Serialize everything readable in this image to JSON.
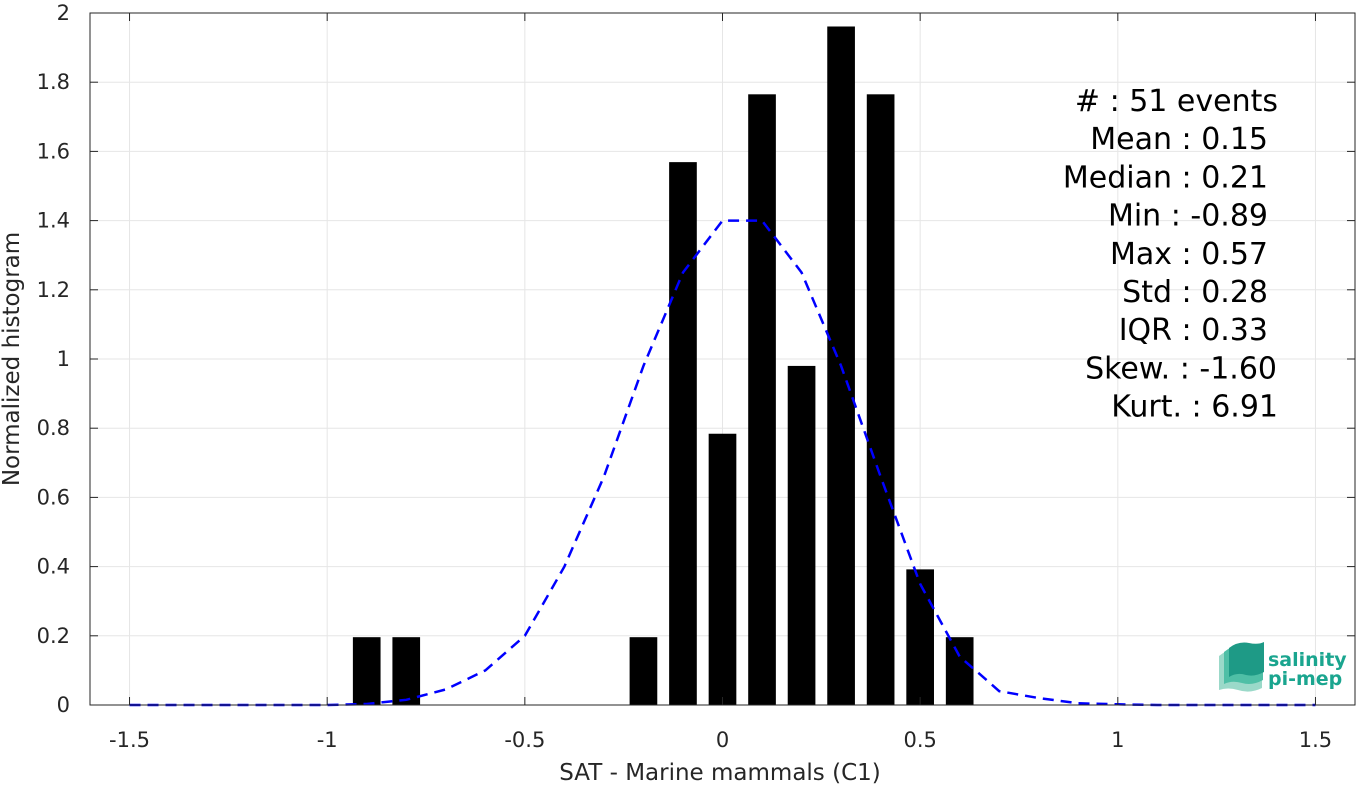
{
  "chart_data": {
    "type": "bar",
    "xlabel": "SAT - Marine mammals (C1)",
    "ylabel": "Normalized histogram",
    "xlim": [
      -1.6,
      1.6
    ],
    "ylim": [
      0,
      2
    ],
    "grid": true,
    "x_ticks": [
      -1.5,
      -1,
      -0.5,
      0,
      0.5,
      1,
      1.5
    ],
    "x_tick_labels": [
      "-1.5",
      "-1",
      "-0.5",
      "0",
      "0.5",
      "1",
      "1.5"
    ],
    "y_ticks": [
      0,
      0.2,
      0.4,
      0.6,
      0.8,
      1,
      1.2,
      1.4,
      1.6,
      1.8,
      2
    ],
    "y_tick_labels": [
      "0",
      "0.2",
      "0.4",
      "0.6",
      "0.8",
      "1",
      "1.2",
      "1.4",
      "1.6",
      "1.8",
      "2"
    ],
    "bar_width": 0.07,
    "bar_color": "#000000",
    "bars": [
      {
        "x": -0.9,
        "value": 0.196
      },
      {
        "x": -0.8,
        "value": 0.196
      },
      {
        "x": -0.2,
        "value": 0.196
      },
      {
        "x": -0.1,
        "value": 1.569
      },
      {
        "x": 0.0,
        "value": 0.784
      },
      {
        "x": 0.1,
        "value": 1.765
      },
      {
        "x": 0.2,
        "value": 0.98
      },
      {
        "x": 0.3,
        "value": 1.961
      },
      {
        "x": 0.4,
        "value": 1.765
      },
      {
        "x": 0.5,
        "value": 0.392
      },
      {
        "x": 0.6,
        "value": 0.196
      }
    ],
    "fit_curve": {
      "style": "dashed",
      "color": "#0000ff",
      "x": [
        -1.5,
        -1.4,
        -1.3,
        -1.2,
        -1.1,
        -1.0,
        -0.9,
        -0.8,
        -0.7,
        -0.6,
        -0.5,
        -0.4,
        -0.3,
        -0.2,
        -0.1,
        0.0,
        0.1,
        0.2,
        0.3,
        0.4,
        0.5,
        0.6,
        0.7,
        0.8,
        0.9,
        1.0,
        1.1,
        1.2,
        1.3,
        1.4,
        1.5
      ],
      "y": [
        0.0,
        0.0,
        0.0,
        0.0,
        0.0,
        0.0,
        0.003,
        0.015,
        0.045,
        0.1,
        0.2,
        0.4,
        0.66,
        0.98,
        1.25,
        1.4,
        1.4,
        1.25,
        0.98,
        0.66,
        0.35,
        0.14,
        0.04,
        0.02,
        0.005,
        0.002,
        0.0,
        0.0,
        0.0,
        0.0,
        0.0
      ]
    },
    "stats": [
      "#  : 51 events",
      "Mean : 0.15",
      "Median : 0.21",
      "Min : -0.89",
      "Max : 0.57",
      "Std : 0.28",
      "IQR : 0.33",
      "Skew. : -1.60",
      "Kurt. : 6.91"
    ]
  },
  "logo": {
    "line1": "salinity",
    "line2": "pi-mep",
    "color": "#1aa58f"
  }
}
